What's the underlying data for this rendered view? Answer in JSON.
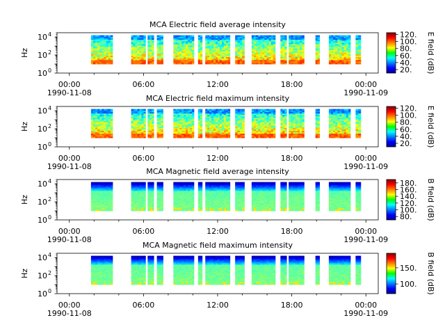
{
  "figure": {
    "background": "#ffffff"
  },
  "chart_data": [
    {
      "type": "heatmap",
      "title": "MCA  Electric field average intensity",
      "ylabel": "Hz",
      "y_scale": "log",
      "ylim": [
        1,
        30000
      ],
      "y_ticks": [
        {
          "value": 1,
          "base": "10",
          "exp": "0"
        },
        {
          "value": 100,
          "base": "10",
          "exp": "2"
        },
        {
          "value": 10000,
          "base": "10",
          "exp": "4"
        }
      ],
      "x_ticks": [
        "00:00",
        "06:00",
        "12:00",
        "18:00",
        "00:00"
      ],
      "x_dates": {
        "start": "1990-11-08",
        "end": "1990-11-09"
      },
      "colorbar": {
        "label": "E field (dB)",
        "range": [
          10,
          125
        ],
        "ticks": [
          "20.",
          "40.",
          "60.",
          "80.",
          "100.",
          "120."
        ]
      },
      "spectral_profile": "electric",
      "coverage_intervals": [
        [
          "01:45",
          "03:30"
        ],
        [
          "05:00",
          "06:10"
        ],
        [
          "06:20",
          "06:50"
        ],
        [
          "07:05",
          "07:35"
        ],
        [
          "08:25",
          "10:05"
        ],
        [
          "10:25",
          "10:45"
        ],
        [
          "11:00",
          "13:00"
        ],
        [
          "13:25",
          "14:10"
        ],
        [
          "14:45",
          "16:40"
        ],
        [
          "17:05",
          "17:35"
        ],
        [
          "17:45",
          "19:00"
        ],
        [
          "19:55",
          "20:15"
        ],
        [
          "21:00",
          "22:45"
        ],
        [
          "23:10",
          "23:35"
        ]
      ]
    },
    {
      "type": "heatmap",
      "title": "MCA  Electric field maximum intensity",
      "ylabel": "Hz",
      "y_scale": "log",
      "ylim": [
        1,
        30000
      ],
      "y_ticks": [
        {
          "value": 1,
          "base": "10",
          "exp": "0"
        },
        {
          "value": 100,
          "base": "10",
          "exp": "2"
        },
        {
          "value": 10000,
          "base": "10",
          "exp": "4"
        }
      ],
      "x_ticks": [
        "00:00",
        "06:00",
        "12:00",
        "18:00",
        "00:00"
      ],
      "x_dates": {
        "start": "1990-11-08",
        "end": "1990-11-09"
      },
      "colorbar": {
        "label": "E field (dB)",
        "range": [
          10,
          125
        ],
        "ticks": [
          "20.",
          "40.",
          "60.",
          "80.",
          "100.",
          "120."
        ]
      },
      "spectral_profile": "electric",
      "coverage_intervals": [
        [
          "01:45",
          "03:30"
        ],
        [
          "05:00",
          "06:10"
        ],
        [
          "06:20",
          "06:50"
        ],
        [
          "07:05",
          "07:35"
        ],
        [
          "08:25",
          "10:05"
        ],
        [
          "10:25",
          "10:45"
        ],
        [
          "11:00",
          "13:00"
        ],
        [
          "13:25",
          "14:10"
        ],
        [
          "14:45",
          "16:40"
        ],
        [
          "17:05",
          "17:35"
        ],
        [
          "17:45",
          "19:00"
        ],
        [
          "19:55",
          "20:15"
        ],
        [
          "21:00",
          "22:45"
        ],
        [
          "23:10",
          "23:35"
        ]
      ]
    },
    {
      "type": "heatmap",
      "title": "MCA  Magnetic field average intensity",
      "ylabel": "Hz",
      "y_scale": "log",
      "ylim": [
        1,
        30000
      ],
      "y_ticks": [
        {
          "value": 1,
          "base": "10",
          "exp": "0"
        },
        {
          "value": 100,
          "base": "10",
          "exp": "2"
        },
        {
          "value": 10000,
          "base": "10",
          "exp": "4"
        }
      ],
      "x_ticks": [
        "00:00",
        "06:00",
        "12:00",
        "18:00",
        "00:00"
      ],
      "x_dates": {
        "start": "1990-11-08",
        "end": "1990-11-09"
      },
      "colorbar": {
        "label": "B field (dB)",
        "range": [
          70,
          190
        ],
        "ticks": [
          "80.",
          "100.",
          "120.",
          "140.",
          "160.",
          "180."
        ]
      },
      "spectral_profile": "magnetic",
      "coverage_intervals": [
        [
          "01:45",
          "03:30"
        ],
        [
          "05:00",
          "06:10"
        ],
        [
          "06:20",
          "06:50"
        ],
        [
          "07:05",
          "07:35"
        ],
        [
          "08:25",
          "10:05"
        ],
        [
          "10:25",
          "10:45"
        ],
        [
          "11:00",
          "13:00"
        ],
        [
          "13:25",
          "14:10"
        ],
        [
          "14:45",
          "16:40"
        ],
        [
          "17:05",
          "17:35"
        ],
        [
          "17:45",
          "19:00"
        ],
        [
          "19:55",
          "20:15"
        ],
        [
          "21:00",
          "22:45"
        ],
        [
          "23:10",
          "23:35"
        ]
      ]
    },
    {
      "type": "heatmap",
      "title": "MCA  Magnetic field maximum intensity",
      "ylabel": "Hz",
      "y_scale": "log",
      "ylim": [
        1,
        30000
      ],
      "y_ticks": [
        {
          "value": 1,
          "base": "10",
          "exp": "0"
        },
        {
          "value": 100,
          "base": "10",
          "exp": "2"
        },
        {
          "value": 10000,
          "base": "10",
          "exp": "4"
        }
      ],
      "x_ticks": [
        "00:00",
        "06:00",
        "12:00",
        "18:00",
        "00:00"
      ],
      "x_dates": {
        "start": "1990-11-08",
        "end": "1990-11-09"
      },
      "colorbar": {
        "label": "B field (dB)",
        "range": [
          70,
          195
        ],
        "ticks": [
          "100.",
          "150."
        ]
      },
      "spectral_profile": "magnetic",
      "coverage_intervals": [
        [
          "01:45",
          "03:30"
        ],
        [
          "05:00",
          "06:10"
        ],
        [
          "06:20",
          "06:50"
        ],
        [
          "07:05",
          "07:35"
        ],
        [
          "08:25",
          "10:05"
        ],
        [
          "10:25",
          "10:45"
        ],
        [
          "11:00",
          "13:00"
        ],
        [
          "13:25",
          "14:10"
        ],
        [
          "14:45",
          "16:40"
        ],
        [
          "17:05",
          "17:35"
        ],
        [
          "17:45",
          "19:00"
        ],
        [
          "19:55",
          "20:15"
        ],
        [
          "21:00",
          "22:45"
        ],
        [
          "23:10",
          "23:35"
        ]
      ]
    }
  ]
}
